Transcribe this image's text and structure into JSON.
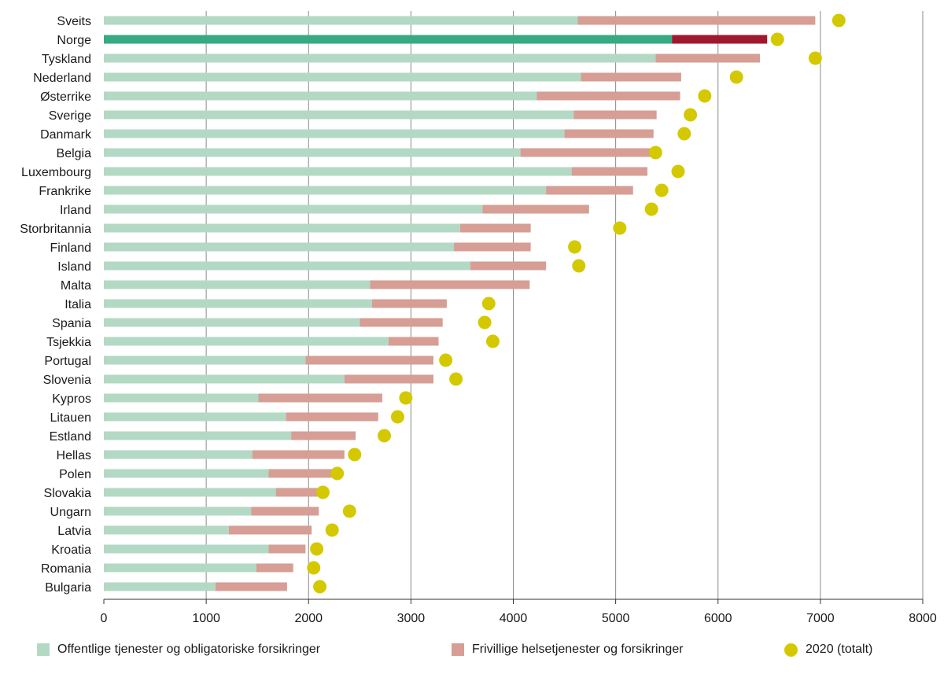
{
  "chart_data": {
    "type": "bar",
    "orientation": "horizontal",
    "stacked": true,
    "xlim": [
      0,
      8000
    ],
    "xticks": [
      "0",
      "1000",
      "2000",
      "3000",
      "4000",
      "5000",
      "6000",
      "7000",
      "8000"
    ],
    "grid": true,
    "legend_placement": "bottom",
    "categories": [
      "Sveits",
      "Norge",
      "Tyskland",
      "Nederland",
      "Østerrike",
      "Sverige",
      "Danmark",
      "Belgia",
      "Luxembourg",
      "Frankrike",
      "Irland",
      "Storbritannia",
      "Finland",
      "Island",
      "Malta",
      "Italia",
      "Spania",
      "Tsjekkia",
      "Portugal",
      "Slovenia",
      "Kypros",
      "Litauen",
      "Estland",
      "Hellas",
      "Polen",
      "Slovakia",
      "Ungarn",
      "Latvia",
      "Kroatia",
      "Romania",
      "Bulgaria"
    ],
    "highlight_category": "Norge",
    "series": [
      {
        "name": "Offentlige tjenester og obligatoriske forsikringer",
        "type": "bar",
        "color": "#b3d9c4",
        "highlight_color": "#36ab83",
        "values": [
          4630,
          5550,
          5390,
          4660,
          4230,
          4590,
          4500,
          4070,
          4570,
          4320,
          3700,
          3480,
          3420,
          3580,
          2600,
          2620,
          2500,
          2780,
          1970,
          2350,
          1510,
          1780,
          1830,
          1450,
          1610,
          1680,
          1440,
          1220,
          1610,
          1490,
          1090
        ]
      },
      {
        "name": "Frivillige helsetjenester og forsikringer",
        "type": "bar",
        "color": "#d69e94",
        "highlight_color": "#a0182e",
        "values": [
          2320,
          930,
          1020,
          980,
          1400,
          810,
          870,
          1290,
          740,
          850,
          1040,
          690,
          750,
          740,
          1560,
          730,
          810,
          490,
          1250,
          870,
          1210,
          900,
          630,
          900,
          630,
          420,
          660,
          810,
          360,
          360,
          700
        ]
      },
      {
        "name": "2020 (totalt)",
        "type": "scatter",
        "color": "#d4c900",
        "values": [
          7180,
          6580,
          6950,
          6180,
          5870,
          5730,
          5670,
          5390,
          5610,
          5450,
          5350,
          5040,
          4600,
          4640,
          null,
          3760,
          3720,
          3800,
          3340,
          3440,
          2950,
          2870,
          2740,
          2450,
          2280,
          2140,
          2400,
          2230,
          2080,
          2050,
          2110
        ]
      }
    ]
  }
}
